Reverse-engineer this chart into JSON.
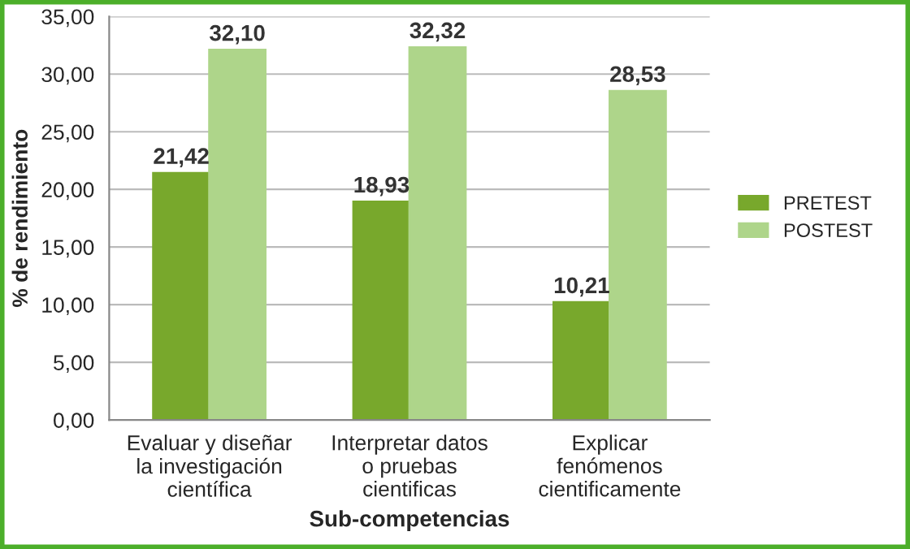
{
  "chart_data": {
    "type": "bar",
    "categories": [
      "Evaluar y diseñar\nla investigación\ncientífica",
      "Interpretar datos\no pruebas\ncientificas",
      "Explicar\nfenómenos\ncientificamente"
    ],
    "series": [
      {
        "name": "PRETEST",
        "color": "#78a82c",
        "values": [
          21.42,
          18.93,
          10.21
        ],
        "value_labels": [
          "21,42",
          "18,93",
          "10,21"
        ]
      },
      {
        "name": "POSTEST",
        "color": "#aed58a",
        "values": [
          32.1,
          32.32,
          28.53
        ],
        "value_labels": [
          "32,10",
          "32,32",
          "28,53"
        ]
      }
    ],
    "xlabel": "Sub-competencias",
    "ylabel": "% de rendimiento",
    "ylim": [
      0,
      35
    ],
    "yticks": [
      {
        "value": 0,
        "label": "0,00"
      },
      {
        "value": 5,
        "label": "5,00"
      },
      {
        "value": 10,
        "label": "10,00"
      },
      {
        "value": 15,
        "label": "15,00"
      },
      {
        "value": 20,
        "label": "20,00"
      },
      {
        "value": 25,
        "label": "25,00"
      },
      {
        "value": 30,
        "label": "30,00"
      },
      {
        "value": 35,
        "label": "35,00"
      }
    ],
    "grid": "y",
    "legend": "right"
  }
}
